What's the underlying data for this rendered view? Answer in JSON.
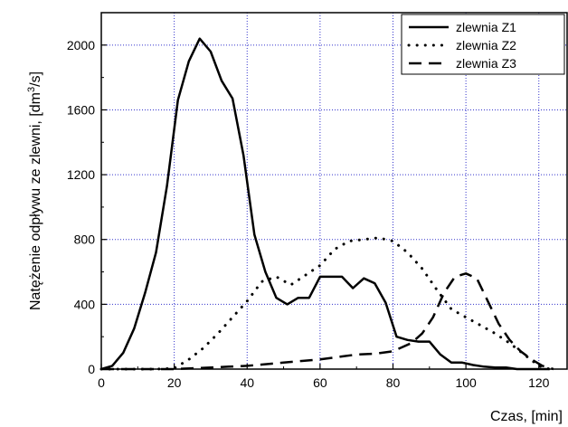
{
  "chart_data": {
    "type": "line",
    "xlabel": "Czas, [min]",
    "ylabel": "Natężenie odpływu ze zlewni, [dm³/s]",
    "ylabel_parts": {
      "main": "Natężenie odpływu ze zlewni, [dm",
      "sup": "3",
      "end": "/s]"
    },
    "xlim": [
      0,
      128
    ],
    "ylim": [
      0,
      2200
    ],
    "xticks": [
      0,
      20,
      40,
      60,
      80,
      100,
      120
    ],
    "yticks": [
      0,
      400,
      800,
      1200,
      1600,
      2000
    ],
    "grid": true,
    "grid_color": "#3333cc",
    "legend_position": "top-right",
    "series": [
      {
        "name": "zlewnia Z1",
        "style": "solid",
        "x": [
          0,
          3,
          6,
          9,
          12,
          15,
          18,
          21,
          24,
          27,
          30,
          33,
          36,
          39,
          42,
          45,
          48,
          51,
          54,
          57,
          60,
          63,
          66,
          69,
          72,
          75,
          78,
          81,
          84,
          87,
          90,
          93,
          96,
          99,
          102,
          105,
          108,
          111,
          114,
          117,
          120,
          123
        ],
        "y": [
          0,
          20,
          100,
          250,
          470,
          720,
          1130,
          1660,
          1900,
          2040,
          1960,
          1780,
          1670,
          1320,
          830,
          600,
          440,
          400,
          440,
          440,
          570,
          570,
          570,
          500,
          560,
          530,
          410,
          200,
          180,
          170,
          170,
          90,
          40,
          40,
          25,
          15,
          10,
          10,
          0,
          0,
          0,
          0
        ]
      },
      {
        "name": "zlewnia Z2",
        "style": "dotted",
        "x": [
          0,
          5,
          10,
          15,
          20,
          24,
          28,
          32,
          36,
          40,
          44,
          48,
          52,
          56,
          60,
          64,
          68,
          72,
          76,
          80,
          84,
          88,
          92,
          96,
          100,
          104,
          108,
          112,
          116,
          120,
          123
        ],
        "y": [
          0,
          0,
          0,
          0,
          5,
          60,
          130,
          220,
          320,
          420,
          540,
          570,
          520,
          580,
          640,
          740,
          790,
          800,
          810,
          790,
          720,
          620,
          490,
          370,
          320,
          270,
          220,
          160,
          90,
          20,
          0
        ]
      },
      {
        "name": "zlewnia Z3",
        "style": "dashed",
        "x": [
          0,
          10,
          20,
          25,
          30,
          35,
          40,
          45,
          50,
          55,
          60,
          65,
          70,
          75,
          80,
          85,
          88,
          91,
          94,
          97,
          100,
          103,
          106,
          109,
          112,
          115,
          118,
          121,
          124
        ],
        "y": [
          0,
          0,
          0,
          5,
          10,
          15,
          20,
          30,
          40,
          50,
          60,
          75,
          90,
          95,
          110,
          160,
          220,
          320,
          470,
          570,
          590,
          560,
          420,
          280,
          180,
          110,
          60,
          20,
          0
        ]
      }
    ]
  }
}
